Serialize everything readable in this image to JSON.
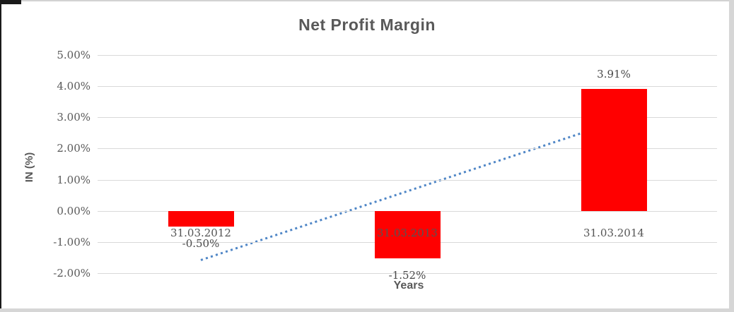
{
  "chart_data": {
    "type": "bar",
    "title": "Net Profit Margin",
    "xlabel": "Years",
    "ylabel": "IN (%)",
    "categories": [
      "31.03.2012",
      "31.03.2013",
      "31.03.2014"
    ],
    "values": [
      -0.5,
      -1.52,
      3.91
    ],
    "data_labels": [
      "-0.50%",
      "-1.52%",
      "3.91%"
    ],
    "ylim": [
      -2,
      5
    ],
    "ytick_step": 1,
    "yticks": [
      {
        "value": 5,
        "label": "5.00%"
      },
      {
        "value": 4,
        "label": "4.00%"
      },
      {
        "value": 3,
        "label": "3.00%"
      },
      {
        "value": 2,
        "label": "2.00%"
      },
      {
        "value": 1,
        "label": "1.00%"
      },
      {
        "value": 0,
        "label": "0.00%"
      },
      {
        "value": -1,
        "label": "-1.00%"
      },
      {
        "value": -2,
        "label": "-2.00%"
      }
    ],
    "grid": true,
    "legend": false,
    "bar_color": "#ff0000",
    "trendline": {
      "type": "linear",
      "style": "dotted",
      "color": "#4f86c6",
      "start_value": -1.58,
      "end_value": 2.84
    },
    "colors": {
      "title_text": "#595959",
      "axis_text": "#595959",
      "gridline": "#d9d9d9"
    }
  }
}
